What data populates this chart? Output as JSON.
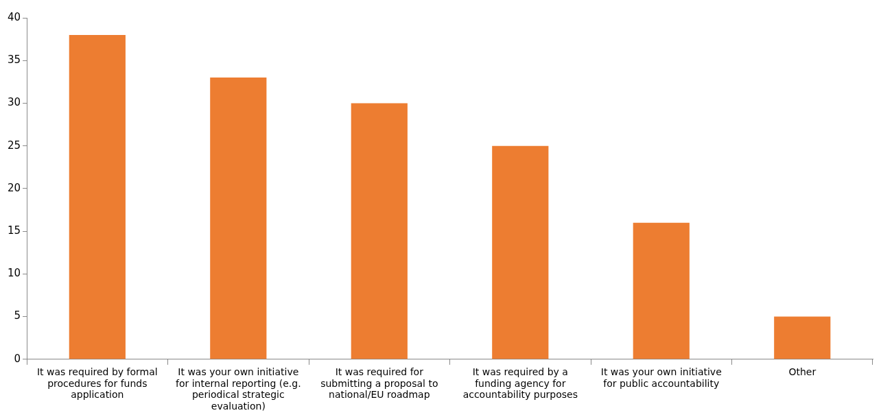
{
  "chart_data": {
    "type": "bar",
    "categories": [
      "It was required by formal procedures for funds application",
      "It was your own initiative for internal reporting (e.g. periodical strategic evaluation)",
      "It was required for submitting a proposal to national/EU roadmap",
      "It was required by a funding agency for accountability purposes",
      "It was your own initiative for public accountability",
      "Other"
    ],
    "values": [
      38,
      33,
      30,
      25,
      16,
      5
    ],
    "color": "#ed7d31",
    "ylim": [
      0,
      40
    ],
    "yticks": [
      0,
      5,
      10,
      15,
      20,
      25,
      30,
      35,
      40
    ],
    "grid": false,
    "legend": false
  }
}
